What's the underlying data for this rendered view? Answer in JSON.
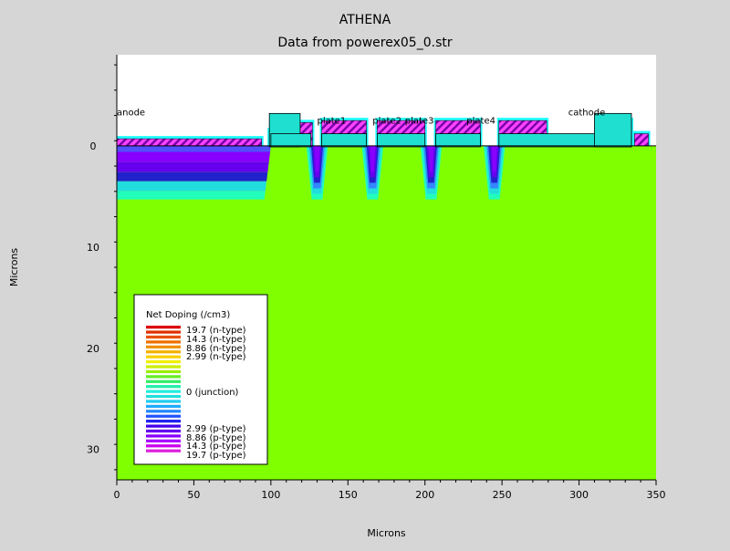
{
  "chart_data": {
    "type": "heatmap",
    "title": "ATHENA",
    "subtitle": "Data from powerex05_0.str",
    "xlabel": "Microns",
    "ylabel": "Microns",
    "xlim": [
      0,
      350
    ],
    "ylim": [
      33,
      -9
    ],
    "xticks": [
      0,
      50,
      100,
      150,
      200,
      250,
      300,
      350
    ],
    "yticks": [
      0,
      10,
      20,
      30
    ],
    "grid": false,
    "regions": {
      "anode": {
        "x": [
          0,
          100
        ],
        "depth_bands": [
          {
            "depth": [
              0.0,
              0.6
            ],
            "color": "#5050ff"
          },
          {
            "depth": [
              0.6,
              1.6
            ],
            "color": "#8800ff"
          },
          {
            "depth": [
              1.6,
              2.6
            ],
            "color": "#6600ee"
          },
          {
            "depth": [
              2.6,
              3.5
            ],
            "color": "#2222cc"
          },
          {
            "depth": [
              3.5,
              4.5
            ],
            "color": "#22dddd"
          },
          {
            "depth": [
              4.5,
              5.3
            ],
            "color": "#22ffbb"
          }
        ]
      },
      "wells_x": [
        130,
        166,
        204,
        245
      ],
      "electrodes": [
        {
          "name": "anode",
          "x": 0,
          "y": -3
        },
        {
          "name": "plate1",
          "x": 130,
          "y": -2.2
        },
        {
          "name": "plate2",
          "x": 166,
          "y": -2.2
        },
        {
          "name": "plate3",
          "x": 187,
          "y": -2.2
        },
        {
          "name": "plate4",
          "x": 227,
          "y": -2.2
        },
        {
          "name": "cathode",
          "x": 293,
          "y": -3
        }
      ]
    },
    "legend": {
      "title": "Net Doping (/cm3)",
      "placement": "bottom-left",
      "entries": [
        {
          "label": "19.7 (n-type)",
          "value": 19.7
        },
        {
          "label": "14.3 (n-type)",
          "value": 14.3
        },
        {
          "label": "8.86 (n-type)",
          "value": 8.86
        },
        {
          "label": "2.99 (n-type)",
          "value": 2.99
        },
        {
          "label": "0 (junction)",
          "value": 0
        },
        {
          "label": "2.99 (p-type)",
          "value": -2.99
        },
        {
          "label": "8.86 (p-type)",
          "value": -8.86
        },
        {
          "label": "14.3 (p-type)",
          "value": -14.3
        },
        {
          "label": "19.7 (p-type)",
          "value": -19.7
        }
      ],
      "colors": [
        "#dd0000",
        "#e03000",
        "#e85000",
        "#ee7000",
        "#f09000",
        "#f4b000",
        "#f8d000",
        "#f0f000",
        "#ccee00",
        "#99ee00",
        "#66ee22",
        "#33ee66",
        "#22eeaa",
        "#22eedd",
        "#22dddd",
        "#22ccee",
        "#22aaff",
        "#2288ff",
        "#2255ff",
        "#2222ee",
        "#4400ee",
        "#6600ee",
        "#8800ff",
        "#aa00ff",
        "#cc00ee",
        "#dd22dd"
      ]
    }
  }
}
